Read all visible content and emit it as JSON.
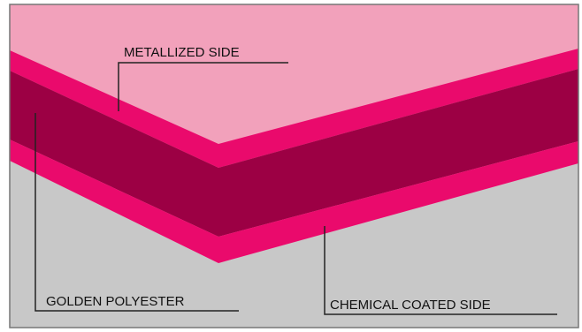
{
  "colors": {
    "background_top": "#f2a1bb",
    "background_bottom": "#c8c8c8",
    "metallized_layer": "#ea0a6c",
    "polyester_layer": "#9c0044",
    "coated_layer": "#ea0a6c",
    "frame": "#777777",
    "leader_line": "#222222"
  },
  "labels": {
    "metallized_side": "METALLIZED SIDE",
    "golden_polyester": "GOLDEN POLYESTER",
    "chemical_coated_side": "CHEMICAL COATED SIDE"
  }
}
